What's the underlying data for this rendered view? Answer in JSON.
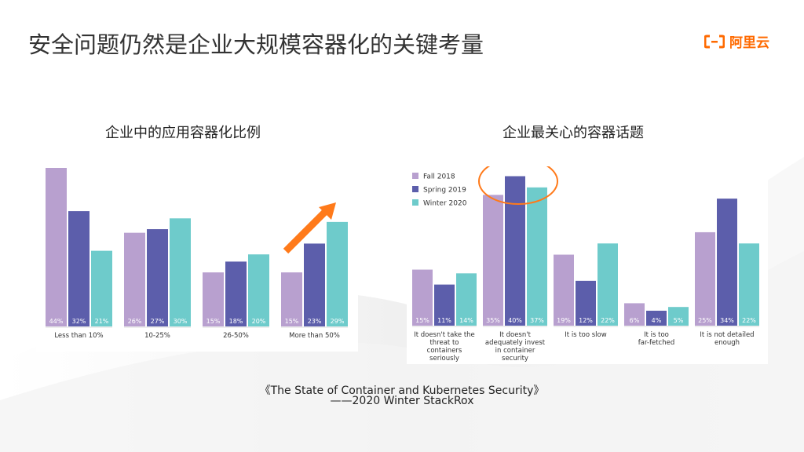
{
  "slide": {
    "title": "安全问题仍然是企业大规模容器化的关键考量",
    "brand_text": "阿里云",
    "brand_color": "#ff6a00",
    "citation_line1": "《The State of Container and Kubernetes Security》",
    "citation_line2": "——2020 Winter StackRox"
  },
  "chart_data": [
    {
      "type": "bar",
      "title": "企业中的应用容器化比例",
      "categories": [
        "Less than 10%",
        "10-25%",
        "26-50%",
        "More than 50%"
      ],
      "series": [
        {
          "name": "Fall 2018",
          "color": "#b8a0cf",
          "values": [
            44,
            26,
            15,
            15
          ]
        },
        {
          "name": "Spring 2019",
          "color": "#5c5eab",
          "values": [
            32,
            27,
            18,
            23
          ]
        },
        {
          "name": "Winter 2020",
          "color": "#6ecbcb",
          "values": [
            21,
            30,
            20,
            29
          ]
        }
      ],
      "value_suffix": "%",
      "ylim": [
        0,
        44
      ],
      "annotation": "orange-arrow-up-trend"
    },
    {
      "type": "bar",
      "title": "企业最关心的容器话题",
      "categories": [
        "It doesn't take the threat to containers seriously",
        "It doesn't adequately invest in container security",
        "It is too slow",
        "It is too far-fetched",
        "It is not detailed enough"
      ],
      "category_lines": [
        [
          "It doesn't take the",
          "threat to",
          "containers",
          "seriously"
        ],
        [
          "It doesn't",
          "adequately invest",
          "in container",
          "security"
        ],
        [
          "It is too slow"
        ],
        [
          "It is too",
          "far-fetched"
        ],
        [
          "It is not detailed",
          "enough"
        ]
      ],
      "series": [
        {
          "name": "Fall 2018",
          "color": "#b8a0cf",
          "values": [
            15,
            35,
            19,
            6,
            25
          ]
        },
        {
          "name": "Spring 2019",
          "color": "#5c5eab",
          "values": [
            11,
            40,
            12,
            4,
            34
          ]
        },
        {
          "name": "Winter 2020",
          "color": "#6ecbcb",
          "values": [
            14,
            37,
            22,
            5,
            22
          ]
        }
      ],
      "value_suffix": "%",
      "ylim": [
        0,
        42
      ],
      "legend": "top-left",
      "annotation": "orange-ellipse-highlight-category-2"
    }
  ]
}
